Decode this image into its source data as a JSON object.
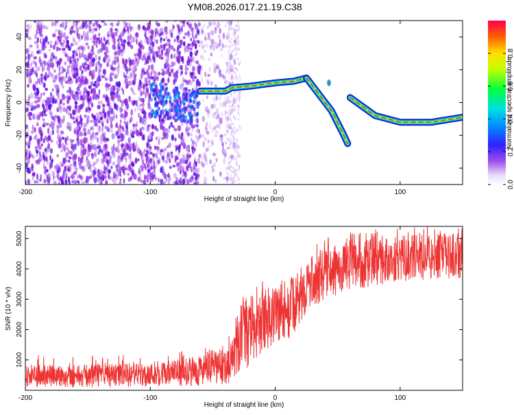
{
  "title": "YM08.2026.017.21.19.C38",
  "chart_data": [
    {
      "type": "heatmap",
      "title": "YM08.2026.017.21.19.C38",
      "xlabel": "Height of straight line (km)",
      "ylabel": "Frequency (Hz)",
      "xlim": [
        -200,
        150
      ],
      "ylim": [
        -50,
        50
      ],
      "xticks": [
        -200,
        -100,
        0,
        100
      ],
      "yticks": [
        -40,
        -20,
        0,
        20,
        40
      ],
      "colorbar": {
        "label": "Normalized spectral amplitude",
        "range": [
          0,
          1
        ],
        "ticks": [
          "0.0",
          "0.2",
          "0.4",
          "0.6",
          "0.8"
        ]
      },
      "ridge": [
        {
          "x": -100,
          "y": 4
        },
        {
          "x": -90,
          "y": 2
        },
        {
          "x": -75,
          "y": -2
        },
        {
          "x": -60,
          "y": 7
        },
        {
          "x": -50,
          "y": 7
        },
        {
          "x": -40,
          "y": 7
        },
        {
          "x": -35,
          "y": 9
        },
        {
          "x": -20,
          "y": 10
        },
        {
          "x": 0,
          "y": 12
        },
        {
          "x": 15,
          "y": 13
        },
        {
          "x": 25,
          "y": 15
        },
        {
          "x": 35,
          "y": 5
        },
        {
          "x": 45,
          "y": -5
        },
        {
          "x": 55,
          "y": -20
        },
        {
          "x": 58,
          "y": -25
        },
        {
          "x": 60,
          "y": 3
        },
        {
          "x": 80,
          "y": -8
        },
        {
          "x": 100,
          "y": -12
        },
        {
          "x": 125,
          "y": -12
        },
        {
          "x": 150,
          "y": -9
        }
      ]
    },
    {
      "type": "line",
      "xlabel": "Height of straight line (km)",
      "ylabel": "SNR (10 * v/v)",
      "xlim": [
        -200,
        150
      ],
      "ylim": [
        0,
        5400
      ],
      "xticks": [
        -200,
        -100,
        0,
        100
      ],
      "yticks": [
        1000,
        2000,
        3000,
        4000,
        5000
      ],
      "color": "#ee3333",
      "envelope": [
        {
          "x": -200,
          "low": 100,
          "high": 850
        },
        {
          "x": -150,
          "low": 100,
          "high": 850
        },
        {
          "x": -100,
          "low": 120,
          "high": 900
        },
        {
          "x": -70,
          "low": 150,
          "high": 1050
        },
        {
          "x": -45,
          "low": 150,
          "high": 1400
        },
        {
          "x": -35,
          "low": 250,
          "high": 1600
        },
        {
          "x": -25,
          "low": 600,
          "high": 3000
        },
        {
          "x": -10,
          "low": 1300,
          "high": 3300
        },
        {
          "x": 0,
          "low": 1400,
          "high": 3700
        },
        {
          "x": 15,
          "low": 1800,
          "high": 3700
        },
        {
          "x": 25,
          "low": 2600,
          "high": 4300
        },
        {
          "x": 40,
          "low": 3000,
          "high": 4700
        },
        {
          "x": 60,
          "low": 3300,
          "high": 4900
        },
        {
          "x": 100,
          "low": 3600,
          "high": 5100
        },
        {
          "x": 150,
          "low": 3700,
          "high": 5200
        }
      ]
    }
  ]
}
